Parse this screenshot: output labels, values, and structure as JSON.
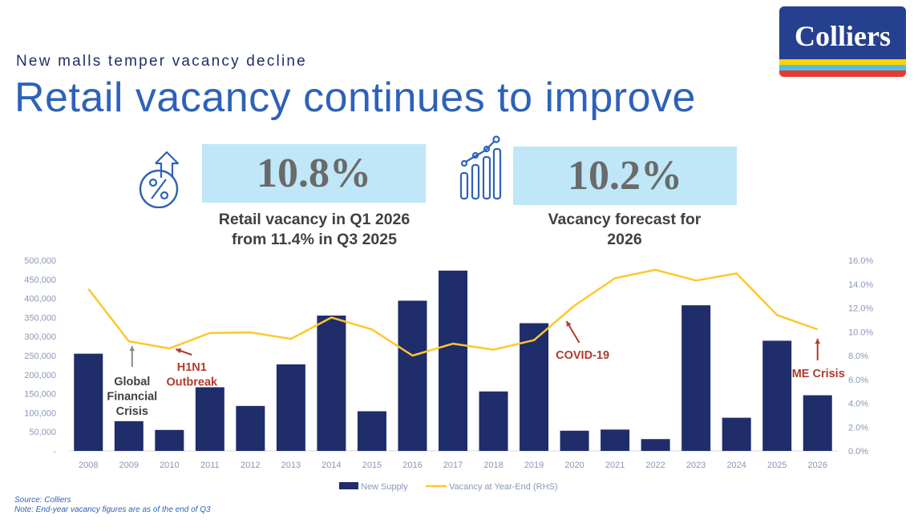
{
  "header": {
    "subtitle": "New malls temper vacancy decline",
    "title": "Retail vacancy continues to improve",
    "logo_text": "Colliers"
  },
  "kpis": [
    {
      "value": "10.8%",
      "caption_line1": "Retail vacancy in Q1 2026",
      "caption_line2": "from 11.4% in Q3 2025",
      "icon": "percent-up-arrow-icon"
    },
    {
      "value": "10.2%",
      "caption_line1": "Vacancy forecast for",
      "caption_line2": "2026",
      "icon": "growth-bars-icon"
    }
  ],
  "colors": {
    "bars": "#1f2d6b",
    "line": "#ffc72c",
    "annotation_red": "#b23a2e",
    "annotation_grey": "#404040",
    "title_blue": "#2e62b8"
  },
  "chart_data": {
    "type": "bar",
    "categories": [
      "2008",
      "2009",
      "2010",
      "2011",
      "2012",
      "2013",
      "2014",
      "2015",
      "2016",
      "2017",
      "2018",
      "2019",
      "2020",
      "2021",
      "2022",
      "2023",
      "2024",
      "2025",
      "2026"
    ],
    "series": [
      {
        "name": "New Supply",
        "type": "bar",
        "axis": "left",
        "values": [
          255000,
          78000,
          55000,
          167000,
          118000,
          227000,
          355000,
          104000,
          394000,
          473000,
          156000,
          335000,
          53000,
          56000,
          31000,
          382000,
          87000,
          289000,
          146000
        ]
      },
      {
        "name": "Vacancy at Year-End (RHS)",
        "type": "line",
        "axis": "right",
        "values": [
          13.6,
          9.2,
          8.6,
          9.9,
          9.95,
          9.4,
          11.2,
          10.2,
          8.0,
          9.0,
          8.5,
          9.3,
          12.2,
          14.5,
          15.2,
          14.3,
          14.9,
          11.4,
          10.2
        ]
      }
    ],
    "y_left": {
      "min": 0,
      "max": 500000,
      "ticks": [
        "-",
        "50,000",
        "100,000",
        "150,000",
        "200,000",
        "250,000",
        "300,000",
        "350,000",
        "400,000",
        "450,000",
        "500,000"
      ]
    },
    "y_right": {
      "min": 0,
      "max": 16,
      "ticks": [
        "0.0%",
        "2.0%",
        "4.0%",
        "6.0%",
        "8.0%",
        "10.0%",
        "12.0%",
        "14.0%",
        "16.0%"
      ]
    },
    "legend": {
      "position": "bottom",
      "items": [
        "New Supply",
        "Vacancy at Year-End (RHS)"
      ]
    },
    "grid": false,
    "annotations": [
      {
        "lines": [
          "Global",
          "Financial",
          "Crisis"
        ],
        "category": "2009",
        "color": "grey"
      },
      {
        "lines": [
          "H1N1",
          "Outbreak"
        ],
        "category": "2010",
        "color": "red"
      },
      {
        "lines": [
          "COVID-19"
        ],
        "category": "2020",
        "color": "red"
      },
      {
        "lines": [
          "ME Crisis"
        ],
        "category": "2026",
        "color": "red"
      }
    ]
  },
  "footer": {
    "source": "Source: Colliers",
    "note": "Note: End-year vacancy figures are as of the end of Q3"
  }
}
